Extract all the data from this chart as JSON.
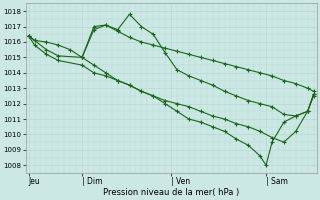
{
  "xlabel": "Pression niveau de la mer( hPa )",
  "bg_color": "#cbe8e4",
  "grid_color": "#b8d8d4",
  "line_color": "#1a6618",
  "ylim": [
    1007.5,
    1018.5
  ],
  "yticks": [
    1008,
    1009,
    1010,
    1011,
    1012,
    1013,
    1014,
    1015,
    1016,
    1017,
    1018
  ],
  "xlim": [
    -0.5,
    48.5
  ],
  "xtick_positions": [
    0,
    9,
    24,
    40
  ],
  "xtick_labels": [
    "Jeu",
    "| Dim",
    "| Ven",
    "| Sam"
  ],
  "series": [
    {
      "x": [
        0,
        1,
        3,
        5,
        7,
        9,
        11,
        13,
        15,
        17,
        19,
        21,
        23,
        25,
        27,
        29,
        31,
        33,
        35,
        37,
        39,
        41,
        43,
        45,
        47,
        48
      ],
      "y": [
        1016.4,
        1016.1,
        1016.0,
        1015.8,
        1015.5,
        1015.0,
        1016.8,
        1017.1,
        1016.7,
        1016.3,
        1016.0,
        1015.8,
        1015.6,
        1015.4,
        1015.2,
        1015.0,
        1014.8,
        1014.6,
        1014.4,
        1014.2,
        1014.0,
        1013.8,
        1013.5,
        1013.3,
        1013.0,
        1012.8
      ]
    },
    {
      "x": [
        0,
        1,
        3,
        5,
        9,
        11,
        13,
        15,
        17,
        19,
        21,
        23,
        25,
        27,
        29,
        31,
        33,
        35,
        37,
        39,
        41,
        43,
        45,
        47,
        48
      ],
      "y": [
        1016.4,
        1016.1,
        1015.5,
        1015.1,
        1015.0,
        1017.0,
        1017.1,
        1016.8,
        1017.8,
        1017.0,
        1016.5,
        1015.3,
        1014.2,
        1013.8,
        1013.5,
        1013.2,
        1012.8,
        1012.5,
        1012.2,
        1012.0,
        1011.8,
        1011.3,
        1011.2,
        1011.5,
        1012.6
      ]
    },
    {
      "x": [
        0,
        1,
        3,
        5,
        9,
        11,
        13,
        15,
        17,
        19,
        21,
        23,
        25,
        27,
        29,
        31,
        33,
        35,
        37,
        39,
        41,
        43,
        45,
        47,
        48
      ],
      "y": [
        1016.4,
        1015.8,
        1015.2,
        1014.8,
        1014.5,
        1014.0,
        1013.8,
        1013.5,
        1013.2,
        1012.8,
        1012.5,
        1012.2,
        1012.0,
        1011.8,
        1011.5,
        1011.2,
        1011.0,
        1010.7,
        1010.5,
        1010.2,
        1009.8,
        1009.5,
        1010.2,
        1011.5,
        1012.5
      ]
    },
    {
      "x": [
        9,
        11,
        13,
        15,
        17,
        19,
        21,
        23,
        25,
        27,
        29,
        31,
        33,
        35,
        37,
        39,
        40,
        41,
        43,
        45,
        47,
        48
      ],
      "y": [
        1015.0,
        1014.5,
        1014.0,
        1013.5,
        1013.2,
        1012.8,
        1012.5,
        1012.0,
        1011.5,
        1011.0,
        1010.8,
        1010.5,
        1010.2,
        1009.7,
        1009.3,
        1008.6,
        1008.0,
        1009.5,
        1010.8,
        1011.2,
        1011.5,
        1012.6
      ]
    }
  ]
}
